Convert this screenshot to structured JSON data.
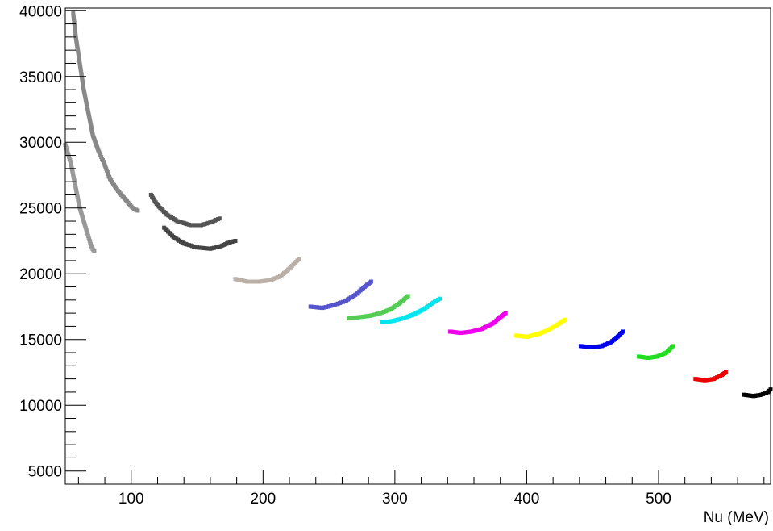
{
  "chart_data": {
    "type": "scatter",
    "title": "",
    "xlabel": "Nu (MeV)",
    "ylabel": "",
    "xlim": [
      50,
      585
    ],
    "ylim": [
      4000,
      40200
    ],
    "x_ticks": [
      100,
      200,
      300,
      400,
      500
    ],
    "y_ticks": [
      5000,
      10000,
      15000,
      20000,
      25000,
      30000,
      35000,
      40000
    ],
    "x_tick_labels": [
      "100",
      "200",
      "300",
      "400",
      "500"
    ],
    "y_tick_labels": [
      "5000",
      "10000",
      "15000",
      "20000",
      "25000",
      "30000",
      "35000",
      "40000"
    ],
    "grid": false,
    "legend": "none",
    "series": [
      {
        "color": "#999999",
        "points": [
          [
            50,
            29800
          ],
          [
            54,
            28500
          ],
          [
            58,
            26500
          ],
          [
            61,
            25000
          ],
          [
            64,
            24000
          ],
          [
            67,
            23000
          ],
          [
            70,
            22000
          ],
          [
            72,
            21700
          ]
        ]
      },
      {
        "color": "#888888",
        "points": [
          [
            56,
            39800
          ],
          [
            58,
            38000
          ],
          [
            61,
            36000
          ],
          [
            64,
            34000
          ],
          [
            68,
            32000
          ],
          [
            71,
            30500
          ],
          [
            75,
            29400
          ],
          [
            79,
            28500
          ],
          [
            84,
            27200
          ],
          [
            90,
            26300
          ],
          [
            96,
            25600
          ],
          [
            101,
            25000
          ],
          [
            105,
            24800
          ]
        ]
      },
      {
        "color": "#555555",
        "points": [
          [
            115,
            26000
          ],
          [
            120,
            25200
          ],
          [
            127,
            24500
          ],
          [
            135,
            24000
          ],
          [
            145,
            23700
          ],
          [
            153,
            23700
          ],
          [
            160,
            23900
          ],
          [
            167,
            24200
          ]
        ]
      },
      {
        "color": "#444444",
        "points": [
          [
            125,
            23500
          ],
          [
            132,
            22800
          ],
          [
            140,
            22300
          ],
          [
            150,
            22000
          ],
          [
            160,
            21900
          ],
          [
            168,
            22100
          ],
          [
            175,
            22400
          ],
          [
            179,
            22500
          ]
        ]
      },
      {
        "color": "#bbb0a8",
        "points": [
          [
            179,
            19600
          ],
          [
            188,
            19400
          ],
          [
            197,
            19400
          ],
          [
            205,
            19500
          ],
          [
            213,
            19800
          ],
          [
            220,
            20400
          ],
          [
            227,
            21100
          ]
        ]
      },
      {
        "color": "#5555cc",
        "points": [
          [
            236,
            17500
          ],
          [
            245,
            17400
          ],
          [
            253,
            17600
          ],
          [
            262,
            17900
          ],
          [
            270,
            18400
          ],
          [
            277,
            19000
          ],
          [
            282,
            19400
          ]
        ]
      },
      {
        "color": "#55cc55",
        "points": [
          [
            265,
            16600
          ],
          [
            273,
            16700
          ],
          [
            281,
            16800
          ],
          [
            289,
            17000
          ],
          [
            297,
            17300
          ],
          [
            304,
            17800
          ],
          [
            310,
            18300
          ]
        ]
      },
      {
        "color": "#00e5ee",
        "points": [
          [
            290,
            16300
          ],
          [
            298,
            16400
          ],
          [
            306,
            16600
          ],
          [
            314,
            16900
          ],
          [
            322,
            17300
          ],
          [
            329,
            17800
          ],
          [
            334,
            18100
          ]
        ]
      },
      {
        "color": "#ee00ee",
        "points": [
          [
            342,
            15600
          ],
          [
            350,
            15500
          ],
          [
            358,
            15600
          ],
          [
            366,
            15800
          ],
          [
            374,
            16200
          ],
          [
            380,
            16700
          ],
          [
            384,
            17000
          ]
        ]
      },
      {
        "color": "#ffff00",
        "points": [
          [
            392,
            15300
          ],
          [
            400,
            15200
          ],
          [
            408,
            15400
          ],
          [
            416,
            15700
          ],
          [
            423,
            16100
          ],
          [
            429,
            16500
          ]
        ]
      },
      {
        "color": "#0000ee",
        "points": [
          [
            441,
            14500
          ],
          [
            449,
            14400
          ],
          [
            457,
            14500
          ],
          [
            464,
            14800
          ],
          [
            470,
            15300
          ],
          [
            473,
            15600
          ]
        ]
      },
      {
        "color": "#22dd22",
        "points": [
          [
            485,
            13700
          ],
          [
            492,
            13600
          ],
          [
            499,
            13700
          ],
          [
            506,
            14000
          ],
          [
            511,
            14500
          ]
        ]
      },
      {
        "color": "#ee0000",
        "points": [
          [
            528,
            12000
          ],
          [
            535,
            11900
          ],
          [
            542,
            12000
          ],
          [
            548,
            12300
          ],
          [
            551,
            12500
          ]
        ]
      },
      {
        "color": "#000000",
        "points": [
          [
            565,
            10800
          ],
          [
            572,
            10700
          ],
          [
            578,
            10800
          ],
          [
            583,
            11000
          ],
          [
            585,
            11200
          ]
        ]
      }
    ]
  }
}
